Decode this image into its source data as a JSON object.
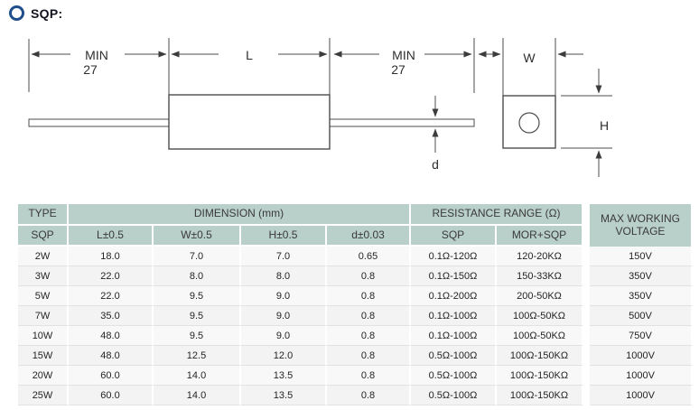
{
  "page": {
    "title": "SQP:"
  },
  "colors": {
    "accent_blue": "#1f4e8c",
    "header_bg": "#b9cfc9",
    "diagram_line": "#4d4d4d"
  },
  "diagram": {
    "labels": {
      "lead_min_left_line1": "MIN",
      "lead_min_left_line2": "27",
      "body_length": "L",
      "lead_min_right_line1": "MIN",
      "lead_min_right_line2": "27",
      "body_width": "W",
      "body_height": "H",
      "lead_diameter": "d"
    }
  },
  "table": {
    "header": {
      "type": "TYPE",
      "type_sub": "SQP",
      "dimension_group": "DIMENSION (mm)",
      "dim_l": "L±0.5",
      "dim_w": "W±0.5",
      "dim_h": "H±0.5",
      "dim_d": "d±0.03",
      "resistance_group": "RESISTANCE RANGE (Ω)",
      "res_sqp": "SQP",
      "res_mor_sqp": "MOR+SQP",
      "max_working_line1": "MAX WORKING",
      "max_working_line2": "VOLTAGE"
    },
    "rows": [
      {
        "type": "2W",
        "l": "18.0",
        "w": "7.0",
        "h": "7.0",
        "d": "0.65",
        "sqp": "0.1Ω-120Ω",
        "mor_sqp": "120-20KΩ",
        "voltage": "150V"
      },
      {
        "type": "3W",
        "l": "22.0",
        "w": "8.0",
        "h": "8.0",
        "d": "0.8",
        "sqp": "0.1Ω-150Ω",
        "mor_sqp": "150-33KΩ",
        "voltage": "350V"
      },
      {
        "type": "5W",
        "l": "22.0",
        "w": "9.5",
        "h": "9.0",
        "d": "0.8",
        "sqp": "0.1Ω-200Ω",
        "mor_sqp": "200-50KΩ",
        "voltage": "350V"
      },
      {
        "type": "7W",
        "l": "35.0",
        "w": "9.5",
        "h": "9.0",
        "d": "0.8",
        "sqp": "0.1Ω-100Ω",
        "mor_sqp": "100Ω-50KΩ",
        "voltage": "500V"
      },
      {
        "type": "10W",
        "l": "48.0",
        "w": "9.5",
        "h": "9.0",
        "d": "0.8",
        "sqp": "0.1Ω-100Ω",
        "mor_sqp": "100Ω-50KΩ",
        "voltage": "750V"
      },
      {
        "type": "15W",
        "l": "48.0",
        "w": "12.5",
        "h": "12.0",
        "d": "0.8",
        "sqp": "0.5Ω-100Ω",
        "mor_sqp": "100Ω-150KΩ",
        "voltage": "1000V"
      },
      {
        "type": "20W",
        "l": "60.0",
        "w": "14.0",
        "h": "13.5",
        "d": "0.8",
        "sqp": "0.5Ω-100Ω",
        "mor_sqp": "100Ω-150KΩ",
        "voltage": "1000V"
      },
      {
        "type": "25W",
        "l": "60.0",
        "w": "14.0",
        "h": "13.5",
        "d": "0.8",
        "sqp": "0.5Ω-100Ω",
        "mor_sqp": "100Ω-150KΩ",
        "voltage": "1000V"
      }
    ]
  }
}
